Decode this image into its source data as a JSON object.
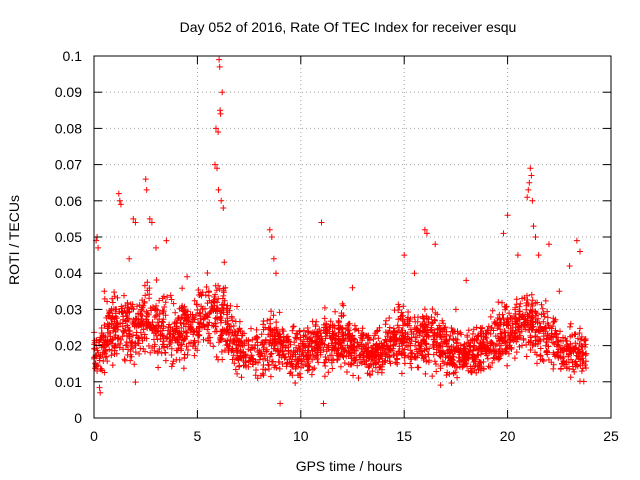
{
  "chart_data": {
    "type": "scatter",
    "title": "Day 052 of 2016, Rate Of TEC Index for receiver esqu",
    "xlabel": "GPS time / hours",
    "ylabel": "ROTI / TECUs",
    "xlim": [
      0,
      25
    ],
    "ylim": [
      0,
      0.1
    ],
    "x_ticks": [
      0,
      5,
      10,
      15,
      20,
      25
    ],
    "x_tick_labels": [
      "0",
      "5",
      "10",
      "15",
      "20",
      "25"
    ],
    "y_ticks": [
      0,
      0.01,
      0.02,
      0.03,
      0.04,
      0.05,
      0.06,
      0.07,
      0.08,
      0.09,
      0.1
    ],
    "y_tick_labels": [
      "0",
      "0.01",
      "0.02",
      "0.03",
      "0.04",
      "0.05",
      "0.06",
      "0.07",
      "0.08",
      "0.09",
      "0.1"
    ],
    "grid": true,
    "marker": "+",
    "color": "#ff0000",
    "data_x_range": [
      0,
      23.8
    ],
    "series": [
      {
        "name": "ROTI",
        "points": [
          [
            0.1,
            0.049
          ],
          [
            0.15,
            0.05
          ],
          [
            0.2,
            0.047
          ],
          [
            0.3,
            0.007
          ],
          [
            0.5,
            0.035
          ],
          [
            1.2,
            0.062
          ],
          [
            1.25,
            0.06
          ],
          [
            1.3,
            0.059
          ],
          [
            1.7,
            0.044
          ],
          [
            1.9,
            0.055
          ],
          [
            2.0,
            0.054
          ],
          [
            2.5,
            0.066
          ],
          [
            2.55,
            0.063
          ],
          [
            2.7,
            0.055
          ],
          [
            2.8,
            0.054
          ],
          [
            3.0,
            0.047
          ],
          [
            3.5,
            0.049
          ],
          [
            4.5,
            0.039
          ],
          [
            5.85,
            0.07
          ],
          [
            5.9,
            0.08
          ],
          [
            5.95,
            0.069
          ],
          [
            6.0,
            0.079
          ],
          [
            6.02,
            0.063
          ],
          [
            6.05,
            0.099
          ],
          [
            6.08,
            0.097
          ],
          [
            6.1,
            0.085
          ],
          [
            6.12,
            0.084
          ],
          [
            6.15,
            0.06
          ],
          [
            6.2,
            0.09
          ],
          [
            6.25,
            0.058
          ],
          [
            6.3,
            0.043
          ],
          [
            8.5,
            0.052
          ],
          [
            8.6,
            0.05
          ],
          [
            8.7,
            0.044
          ],
          [
            8.8,
            0.04
          ],
          [
            9.0,
            0.004
          ],
          [
            11.0,
            0.054
          ],
          [
            11.1,
            0.004
          ],
          [
            12.5,
            0.036
          ],
          [
            15.0,
            0.045
          ],
          [
            15.5,
            0.04
          ],
          [
            16.0,
            0.052
          ],
          [
            16.1,
            0.051
          ],
          [
            16.5,
            0.048
          ],
          [
            17.5,
            0.03
          ],
          [
            18.0,
            0.038
          ],
          [
            18.5,
            0.025
          ],
          [
            19.8,
            0.051
          ],
          [
            20.0,
            0.056
          ],
          [
            20.5,
            0.045
          ],
          [
            20.95,
            0.061
          ],
          [
            21.0,
            0.063
          ],
          [
            21.05,
            0.065
          ],
          [
            21.1,
            0.069
          ],
          [
            21.15,
            0.067
          ],
          [
            21.2,
            0.06
          ],
          [
            21.25,
            0.053
          ],
          [
            21.35,
            0.05
          ],
          [
            21.5,
            0.045
          ],
          [
            22.0,
            0.048
          ],
          [
            22.5,
            0.035
          ],
          [
            23.0,
            0.042
          ],
          [
            23.35,
            0.049
          ],
          [
            23.5,
            0.046
          ]
        ]
      }
    ],
    "density_profile": [
      [
        0.0,
        0.016,
        0.006
      ],
      [
        0.5,
        0.022,
        0.007
      ],
      [
        1.0,
        0.025,
        0.008
      ],
      [
        1.5,
        0.026,
        0.008
      ],
      [
        2.0,
        0.024,
        0.008
      ],
      [
        2.5,
        0.027,
        0.008
      ],
      [
        3.0,
        0.026,
        0.008
      ],
      [
        3.5,
        0.024,
        0.007
      ],
      [
        4.0,
        0.023,
        0.007
      ],
      [
        4.5,
        0.025,
        0.007
      ],
      [
        5.0,
        0.026,
        0.008
      ],
      [
        5.5,
        0.028,
        0.008
      ],
      [
        6.0,
        0.029,
        0.009
      ],
      [
        6.5,
        0.026,
        0.008
      ],
      [
        7.0,
        0.02,
        0.006
      ],
      [
        7.5,
        0.017,
        0.005
      ],
      [
        8.0,
        0.018,
        0.006
      ],
      [
        8.5,
        0.021,
        0.007
      ],
      [
        9.0,
        0.02,
        0.006
      ],
      [
        9.5,
        0.019,
        0.006
      ],
      [
        10.0,
        0.018,
        0.006
      ],
      [
        10.5,
        0.019,
        0.006
      ],
      [
        11.0,
        0.022,
        0.007
      ],
      [
        11.5,
        0.021,
        0.007
      ],
      [
        12.0,
        0.022,
        0.007
      ],
      [
        12.5,
        0.02,
        0.006
      ],
      [
        13.0,
        0.019,
        0.006
      ],
      [
        13.5,
        0.017,
        0.005
      ],
      [
        14.0,
        0.019,
        0.006
      ],
      [
        14.5,
        0.021,
        0.006
      ],
      [
        15.0,
        0.023,
        0.007
      ],
      [
        15.5,
        0.022,
        0.007
      ],
      [
        16.0,
        0.022,
        0.007
      ],
      [
        16.5,
        0.021,
        0.007
      ],
      [
        17.0,
        0.019,
        0.006
      ],
      [
        17.5,
        0.018,
        0.005
      ],
      [
        18.0,
        0.018,
        0.005
      ],
      [
        18.5,
        0.019,
        0.006
      ],
      [
        19.0,
        0.02,
        0.006
      ],
      [
        19.5,
        0.022,
        0.007
      ],
      [
        20.0,
        0.023,
        0.007
      ],
      [
        20.5,
        0.025,
        0.008
      ],
      [
        21.0,
        0.026,
        0.008
      ],
      [
        21.5,
        0.024,
        0.008
      ],
      [
        22.0,
        0.022,
        0.007
      ],
      [
        22.5,
        0.019,
        0.006
      ],
      [
        23.0,
        0.018,
        0.006
      ],
      [
        23.5,
        0.018,
        0.006
      ],
      [
        23.8,
        0.017,
        0.006
      ]
    ]
  }
}
